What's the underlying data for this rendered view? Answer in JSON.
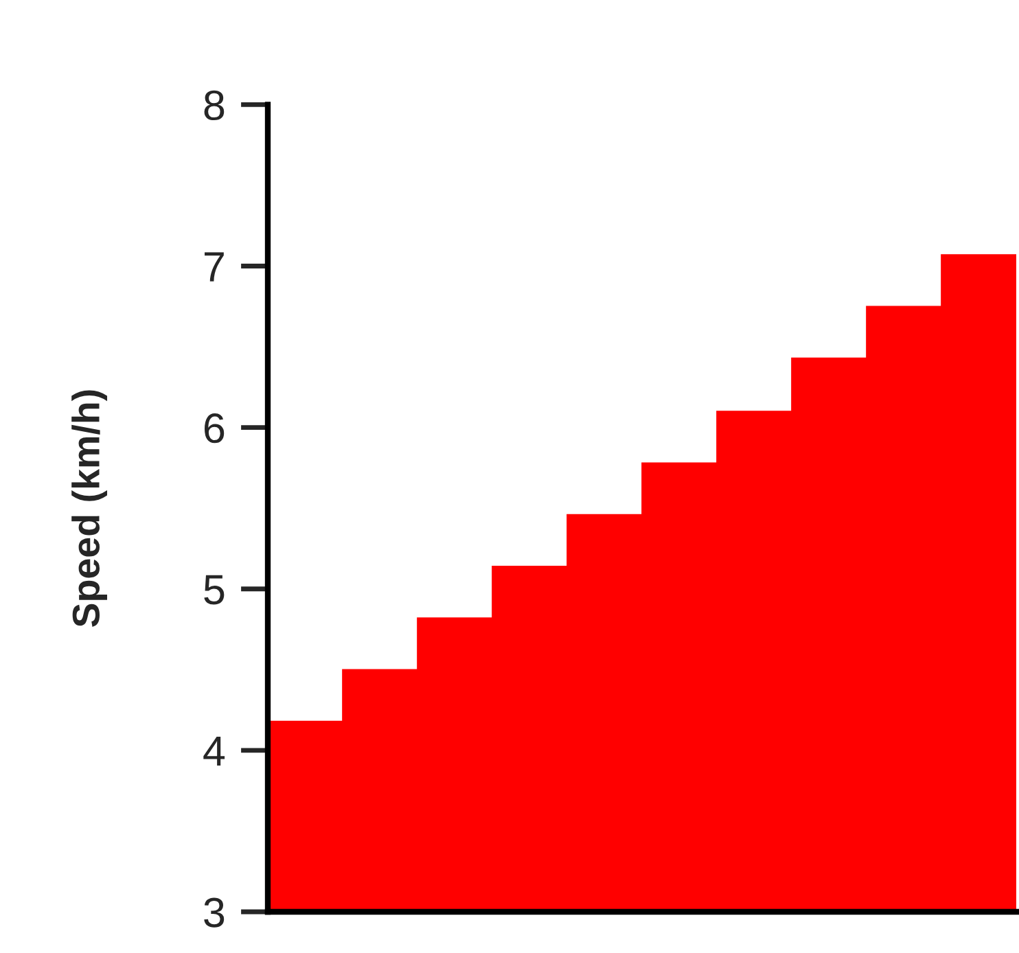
{
  "chart_data": {
    "type": "bar",
    "ylabel": "Speed (km/h)",
    "categories": [
      null,
      null,
      null,
      null,
      null,
      null,
      null,
      null,
      null,
      null
    ],
    "values": [
      4.18,
      4.5,
      4.82,
      5.14,
      5.46,
      5.78,
      6.1,
      6.43,
      6.75,
      7.07
    ],
    "color": "#ff0000",
    "ylim": [
      3,
      8
    ],
    "yticks": [
      3,
      4,
      5,
      6,
      7,
      8
    ],
    "grid": false,
    "legend": false,
    "tick_labels": "y"
  }
}
